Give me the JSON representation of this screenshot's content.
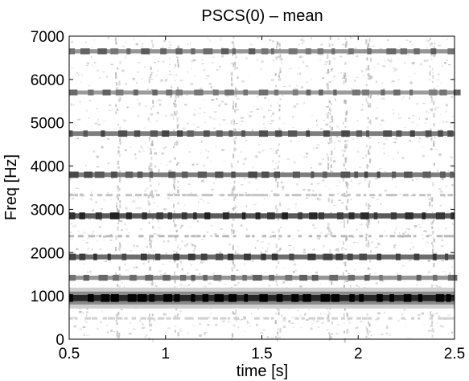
{
  "chart_data": {
    "type": "heatmap",
    "title": "PSCS(0) – mean",
    "xlabel": "time [s]",
    "ylabel": "Freq [Hz]",
    "xlim": [
      0.5,
      2.5
    ],
    "ylim": [
      0,
      7000
    ],
    "x_ticks": [
      0.5,
      1,
      1.5,
      2,
      2.5
    ],
    "x_tick_labels": [
      "0.5",
      "1",
      "1.5",
      "2",
      "2.5"
    ],
    "y_ticks": [
      0,
      1000,
      2000,
      3000,
      4000,
      5000,
      6000,
      7000
    ],
    "y_tick_labels": [
      "0",
      "1000",
      "2000",
      "3000",
      "4000",
      "5000",
      "6000",
      "7000"
    ],
    "colormap": "grayscale-inverted",
    "grid": false,
    "harmonic_bands": [
      {
        "freq": 480,
        "intensity": 0.2
      },
      {
        "freq": 950,
        "intensity": 0.92
      },
      {
        "freq": 1420,
        "intensity": 0.45
      },
      {
        "freq": 1900,
        "intensity": 0.62
      },
      {
        "freq": 2380,
        "intensity": 0.3
      },
      {
        "freq": 2850,
        "intensity": 0.7
      },
      {
        "freq": 3330,
        "intensity": 0.25
      },
      {
        "freq": 3800,
        "intensity": 0.55
      },
      {
        "freq": 4750,
        "intensity": 0.55
      },
      {
        "freq": 5700,
        "intensity": 0.42
      },
      {
        "freq": 6650,
        "intensity": 0.45
      }
    ],
    "vertical_streaks": [
      0.75,
      0.92,
      1.05,
      1.35,
      1.58,
      1.85,
      1.93,
      2.05,
      2.38
    ]
  }
}
